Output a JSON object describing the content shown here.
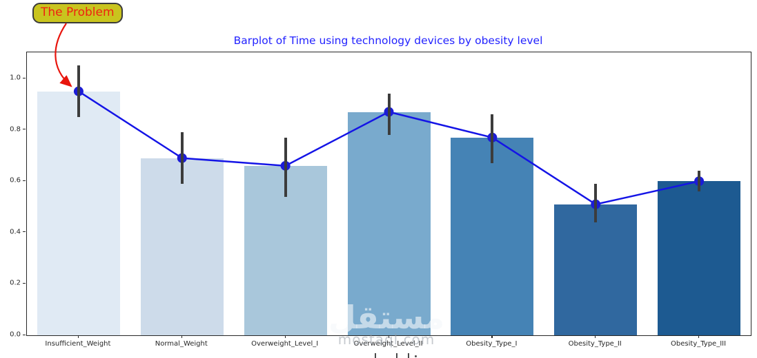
{
  "annotation": {
    "label": "The Problem",
    "box_fill": "#c9c41e",
    "box_border": "#3a3a3a",
    "text_color": "#ee2211",
    "arrow_color": "#e8150d"
  },
  "watermark": {
    "arabic": "مستقل",
    "domain": "mostaql.com"
  },
  "chart_data": {
    "type": "bar",
    "title": "Barplot of Time using technology devices by obesity level",
    "title_color": "#2222ff",
    "categories": [
      "Insufficient_Weight",
      "Normal_Weight",
      "Overweight_Level_I",
      "Overweight_Level_II",
      "Obesity_Type_I",
      "Obesity_Type_II",
      "Obesity_Type_III"
    ],
    "values": [
      0.95,
      0.69,
      0.66,
      0.87,
      0.77,
      0.51,
      0.6
    ],
    "error_low": [
      0.85,
      0.59,
      0.54,
      0.78,
      0.67,
      0.44,
      0.56
    ],
    "error_high": [
      1.05,
      0.79,
      0.77,
      0.94,
      0.86,
      0.59,
      0.64
    ],
    "y_ticks": [
      "0.0",
      "0.2",
      "0.4",
      "0.6",
      "0.8",
      "1.0"
    ],
    "ylim": [
      0,
      1.1
    ],
    "xlabel": "",
    "ylabel": "",
    "grid": false,
    "legend": "none",
    "overlay": "blue line with circular markers connecting bar means, dark error bars",
    "bar_colors": [
      "#e0eaf4",
      "#cddbea",
      "#a9c7db",
      "#79aacd",
      "#4583b5",
      "#30689f",
      "#1d5a91"
    ],
    "line_color": "#1414e6",
    "marker_color": "#1c1cd6",
    "error_color": "#3c3c3c"
  }
}
